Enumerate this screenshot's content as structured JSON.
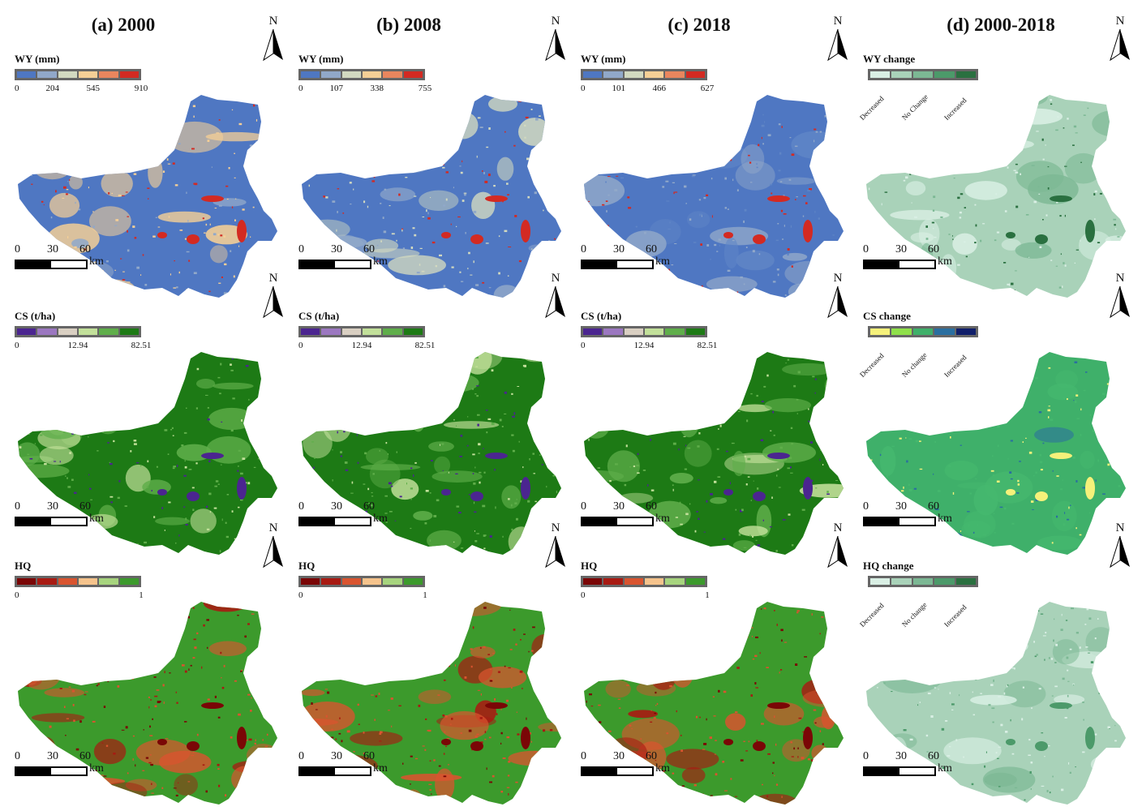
{
  "columns": [
    {
      "title": "(a) 2000"
    },
    {
      "title": "(b) 2008"
    },
    {
      "title": "(c) 2018"
    },
    {
      "title": "(d) 2000-2018"
    }
  ],
  "north_label": "N",
  "scale": {
    "labels": [
      "0",
      "30",
      "60"
    ],
    "unit": "km"
  },
  "rows": [
    {
      "service": "WY",
      "panels": [
        {
          "legend_title": "WY (mm)",
          "ticks": [
            "0",
            "204",
            "545",
            "910"
          ],
          "colors": [
            "#4f77c2",
            "#91a8c9",
            "#d2d9c0",
            "#f5cf96",
            "#e9865e",
            "#d32a22"
          ],
          "base": "#4f77c2",
          "patch": "#f5cf96",
          "accent": "#d32a22",
          "mid": "#91a8c9"
        },
        {
          "legend_title": "WY (mm)",
          "ticks": [
            "0",
            "107",
            "338",
            "755"
          ],
          "colors": [
            "#4f77c2",
            "#91a8c9",
            "#d2d9c0",
            "#f5cf96",
            "#e9865e",
            "#d32a22"
          ],
          "base": "#4f77c2",
          "patch": "#d2d9c0",
          "accent": "#d32a22",
          "mid": "#91a8c9"
        },
        {
          "legend_title": "WY (mm)",
          "ticks": [
            "0",
            "101",
            "466",
            "627"
          ],
          "colors": [
            "#4f77c2",
            "#91a8c9",
            "#d2d9c0",
            "#f5cf96",
            "#e9865e",
            "#d32a22"
          ],
          "base": "#4f77c2",
          "patch": "#91a8c9",
          "accent": "#d32a22",
          "mid": "#5f85c6"
        },
        {
          "legend_title": "WY change",
          "change_labels": [
            "Decreased",
            "No Change",
            "Increased"
          ],
          "colors": [
            "#d9efe4",
            "#a9d2b9",
            "#7cb894",
            "#4c9a6a",
            "#2a7040"
          ],
          "base": "#a9d2b9",
          "patch": "#d9efe4",
          "accent": "#2a7040",
          "mid": "#7cb894"
        }
      ]
    },
    {
      "service": "CS",
      "panels": [
        {
          "legend_title": "CS (t/ha)",
          "ticks": [
            "0",
            "12.94",
            "82.51"
          ],
          "colors": [
            "#4b2590",
            "#9b77c0",
            "#d9cfc2",
            "#c2e09a",
            "#5fae4a",
            "#1d7a15"
          ],
          "base": "#1d7a15",
          "patch": "#5fae4a",
          "accent": "#4b2590",
          "mid": "#c2e09a"
        },
        {
          "legend_title": "CS (t/ha)",
          "ticks": [
            "0",
            "12.94",
            "82.51"
          ],
          "colors": [
            "#4b2590",
            "#9b77c0",
            "#d9cfc2",
            "#c2e09a",
            "#5fae4a",
            "#1d7a15"
          ],
          "base": "#1d7a15",
          "patch": "#5fae4a",
          "accent": "#4b2590",
          "mid": "#c2e09a"
        },
        {
          "legend_title": "CS (t/ha)",
          "ticks": [
            "0",
            "12.94",
            "82.51"
          ],
          "colors": [
            "#4b2590",
            "#9b77c0",
            "#d9cfc2",
            "#c2e09a",
            "#5fae4a",
            "#1d7a15"
          ],
          "base": "#1d7a15",
          "patch": "#5fae4a",
          "accent": "#4b2590",
          "mid": "#c2e09a"
        },
        {
          "legend_title": "CS change",
          "change_labels": [
            "Decreased",
            "No change",
            "Increased"
          ],
          "colors": [
            "#f5f17a",
            "#8fe04a",
            "#3fb06a",
            "#2a6fa0",
            "#101e6a"
          ],
          "base": "#3fb06a",
          "patch": "#45b86e",
          "accent": "#f5f17a",
          "mid": "#2a6fa0"
        }
      ]
    },
    {
      "service": "HQ",
      "panels": [
        {
          "legend_title": "HQ",
          "ticks": [
            "0",
            "1"
          ],
          "colors": [
            "#7a0606",
            "#a81a12",
            "#d9542f",
            "#f5c38c",
            "#a7d47e",
            "#3c9a2c"
          ],
          "base": "#3c9a2c",
          "patch": "#d9542f",
          "accent": "#7a0606",
          "mid": "#a81a12"
        },
        {
          "legend_title": "HQ",
          "ticks": [
            "0",
            "1"
          ],
          "colors": [
            "#7a0606",
            "#a81a12",
            "#d9542f",
            "#f5c38c",
            "#a7d47e",
            "#3c9a2c"
          ],
          "base": "#3c9a2c",
          "patch": "#d9542f",
          "accent": "#7a0606",
          "mid": "#a81a12"
        },
        {
          "legend_title": "HQ",
          "ticks": [
            "0",
            "1"
          ],
          "colors": [
            "#7a0606",
            "#a81a12",
            "#d9542f",
            "#f5c38c",
            "#a7d47e",
            "#3c9a2c"
          ],
          "base": "#3c9a2c",
          "patch": "#d9542f",
          "accent": "#7a0606",
          "mid": "#a81a12"
        },
        {
          "legend_title": "HQ change",
          "change_labels": [
            "Decreased",
            "No change",
            "Increased"
          ],
          "colors": [
            "#d9efe4",
            "#a9d2b9",
            "#7cb894",
            "#4c9a6a",
            "#2a7040"
          ],
          "base": "#a9d2b9",
          "patch": "#d9efe4",
          "accent": "#4c9a6a",
          "mid": "#7cb894"
        }
      ]
    }
  ]
}
